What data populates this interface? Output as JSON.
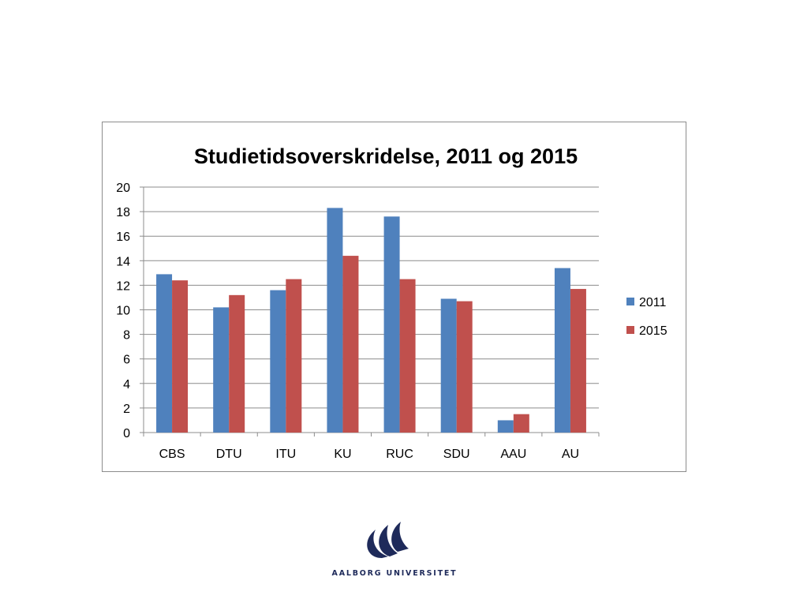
{
  "chart_data": {
    "type": "bar",
    "title": "Studietidsoverskridelse, 2011 og 2015",
    "categories": [
      "CBS",
      "DTU",
      "ITU",
      "KU",
      "RUC",
      "SDU",
      "AAU",
      "AU"
    ],
    "series": [
      {
        "name": "2011",
        "color": "#4f81bd",
        "values": [
          12.9,
          10.2,
          11.6,
          18.3,
          17.6,
          10.9,
          1.0,
          13.4
        ]
      },
      {
        "name": "2015",
        "color": "#c0504d",
        "values": [
          12.4,
          11.2,
          12.5,
          14.4,
          12.5,
          10.7,
          1.5,
          11.7
        ]
      }
    ],
    "ylim": [
      0,
      20
    ],
    "yticks": [
      0,
      2,
      4,
      6,
      8,
      10,
      12,
      14,
      16,
      18,
      20
    ],
    "grid": true,
    "legend_position": "right",
    "xlabel": "",
    "ylabel": ""
  },
  "logo": {
    "text": "AALBORG UNIVERSITET",
    "icon": "aalborg-university-logo-icon",
    "color": "#1e2a5a"
  }
}
